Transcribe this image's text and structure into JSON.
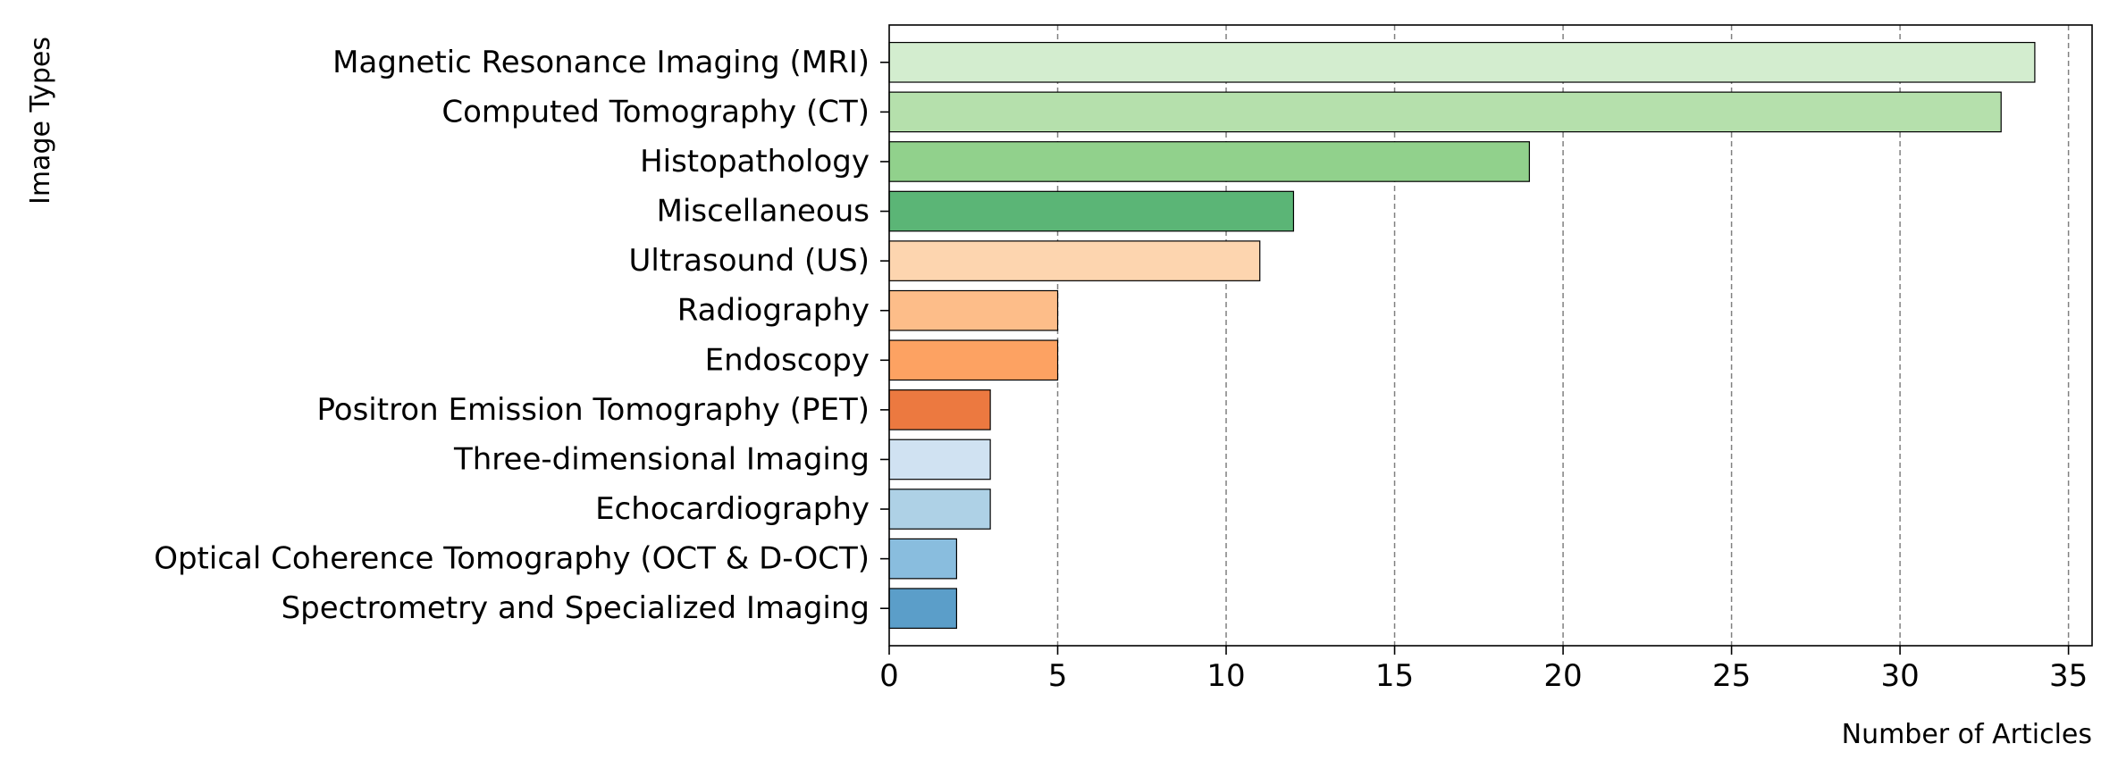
{
  "chart_data": {
    "type": "bar",
    "orientation": "horizontal",
    "xlabel": "Number of Articles",
    "ylabel": "Image Types",
    "xlim": [
      0,
      35.7
    ],
    "xticks": [
      0,
      5,
      10,
      15,
      20,
      25,
      30,
      35
    ],
    "grid": "x-dashed",
    "categories": [
      "Magnetic Resonance Imaging (MRI)",
      "Computed Tomography (CT)",
      "Histopathology",
      "Miscellaneous",
      "Ultrasound (US)",
      "Radiography",
      "Endoscopy",
      "Positron Emission Tomography (PET)",
      "Three-dimensional Imaging",
      "Echocardiography",
      "Optical Coherence Tomography (OCT & D-OCT)",
      "Spectrometry and Specialized Imaging"
    ],
    "values": [
      34,
      33,
      19,
      12,
      11,
      5,
      5,
      3,
      3,
      3,
      2,
      2
    ],
    "colors": [
      "#d3edcf",
      "#b5e0ac",
      "#91d18c",
      "#5bb576",
      "#fdd5af",
      "#fdbd89",
      "#fda262",
      "#ec7940",
      "#d0e2f2",
      "#aed1e6",
      "#89bdde",
      "#5b9ec9"
    ]
  }
}
